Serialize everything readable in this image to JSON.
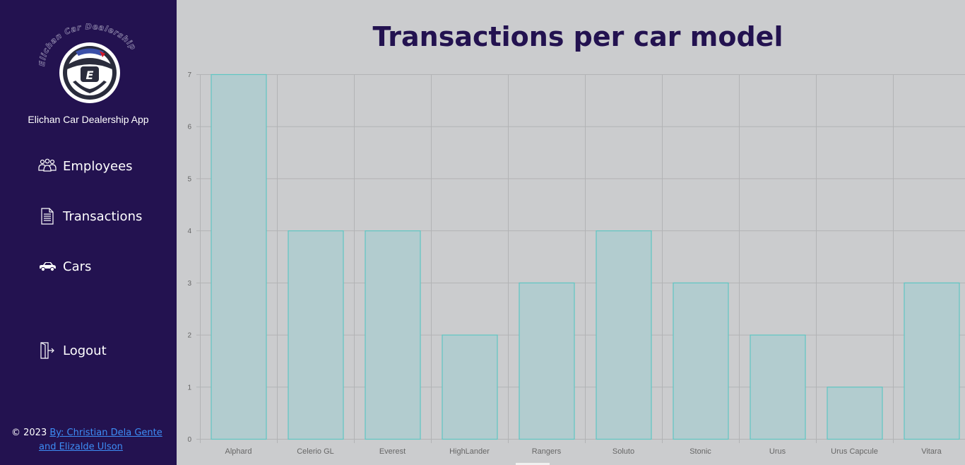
{
  "sidebar": {
    "logo_text": "Elichan Car Dealership",
    "app_name": "Elichan Car Dealership App",
    "nav": {
      "employees": "Employees",
      "transactions": "Transactions",
      "cars": "Cars",
      "logout": "Logout"
    },
    "footer": {
      "copyright": "© 2023",
      "credit_1": "By: Christian Dela Gente",
      "credit_2": "and Elizalde Ulson"
    }
  },
  "icons": {
    "employees": "users-icon",
    "transactions": "document-icon",
    "cars": "car-icon",
    "logout": "door-exit-icon"
  },
  "colors": {
    "sidebar_bg": "#231250",
    "title": "#231250",
    "bar_fill": "#b2cccf",
    "bar_stroke": "#5fc6c3",
    "background": "#cbccce",
    "link": "#3d8df5"
  },
  "chart_data": {
    "type": "bar",
    "title": "Transactions per car model",
    "categories": [
      "Alphard",
      "Celerio GL",
      "Everest",
      "HighLander",
      "Rangers",
      "Soluto",
      "Stonic",
      "Urus",
      "Urus Capcule",
      "Vitara"
    ],
    "values": [
      7,
      4,
      4,
      2,
      3,
      4,
      3,
      2,
      1,
      3
    ],
    "yticks": [
      "0",
      "1",
      "2",
      "3",
      "4",
      "5",
      "6",
      "7"
    ],
    "ylim": [
      0,
      7
    ],
    "grid": true,
    "legend": "none"
  }
}
